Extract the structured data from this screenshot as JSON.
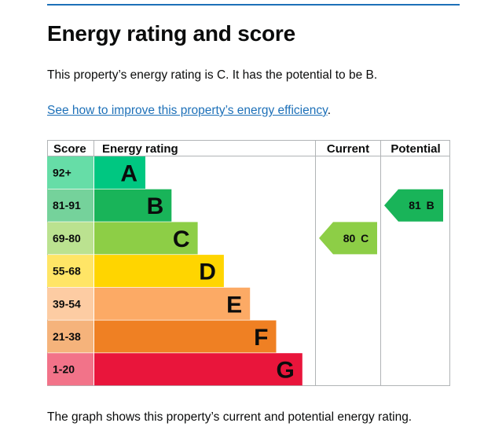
{
  "page": {
    "title": "Energy rating and score",
    "summary": "This property’s energy rating is C. It has the potential to be B.",
    "improve_link": "See how to improve this property’s energy efficiency",
    "improve_suffix": ".",
    "caption": "The graph shows this property’s current and potential energy rating."
  },
  "graph": {
    "headers": {
      "score": "Score",
      "rating": "Energy rating",
      "current": "Current",
      "potential": "Potential"
    },
    "bands": [
      {
        "score": "92+",
        "letter": "A",
        "color": "#00c781",
        "score_bg": "#66dda7"
      },
      {
        "score": "81-91",
        "letter": "B",
        "color": "#19b459",
        "score_bg": "#75d29b"
      },
      {
        "score": "69-80",
        "letter": "C",
        "color": "#8dce46",
        "score_bg": "#bbe290"
      },
      {
        "score": "55-68",
        "letter": "D",
        "color": "#ffd500",
        "score_bg": "#ffe566"
      },
      {
        "score": "39-54",
        "letter": "E",
        "color": "#fcaa65",
        "score_bg": "#fdcca3"
      },
      {
        "score": "21-38",
        "letter": "F",
        "color": "#ef8023",
        "score_bg": "#f5b37b"
      },
      {
        "score": "1-20",
        "letter": "G",
        "color": "#e9153b",
        "score_bg": "#f27389"
      }
    ],
    "current": {
      "label": "80 C",
      "band": "C",
      "color": "#8dce46"
    },
    "potential": {
      "label": "81 B",
      "band": "B",
      "color": "#19b459"
    }
  }
}
